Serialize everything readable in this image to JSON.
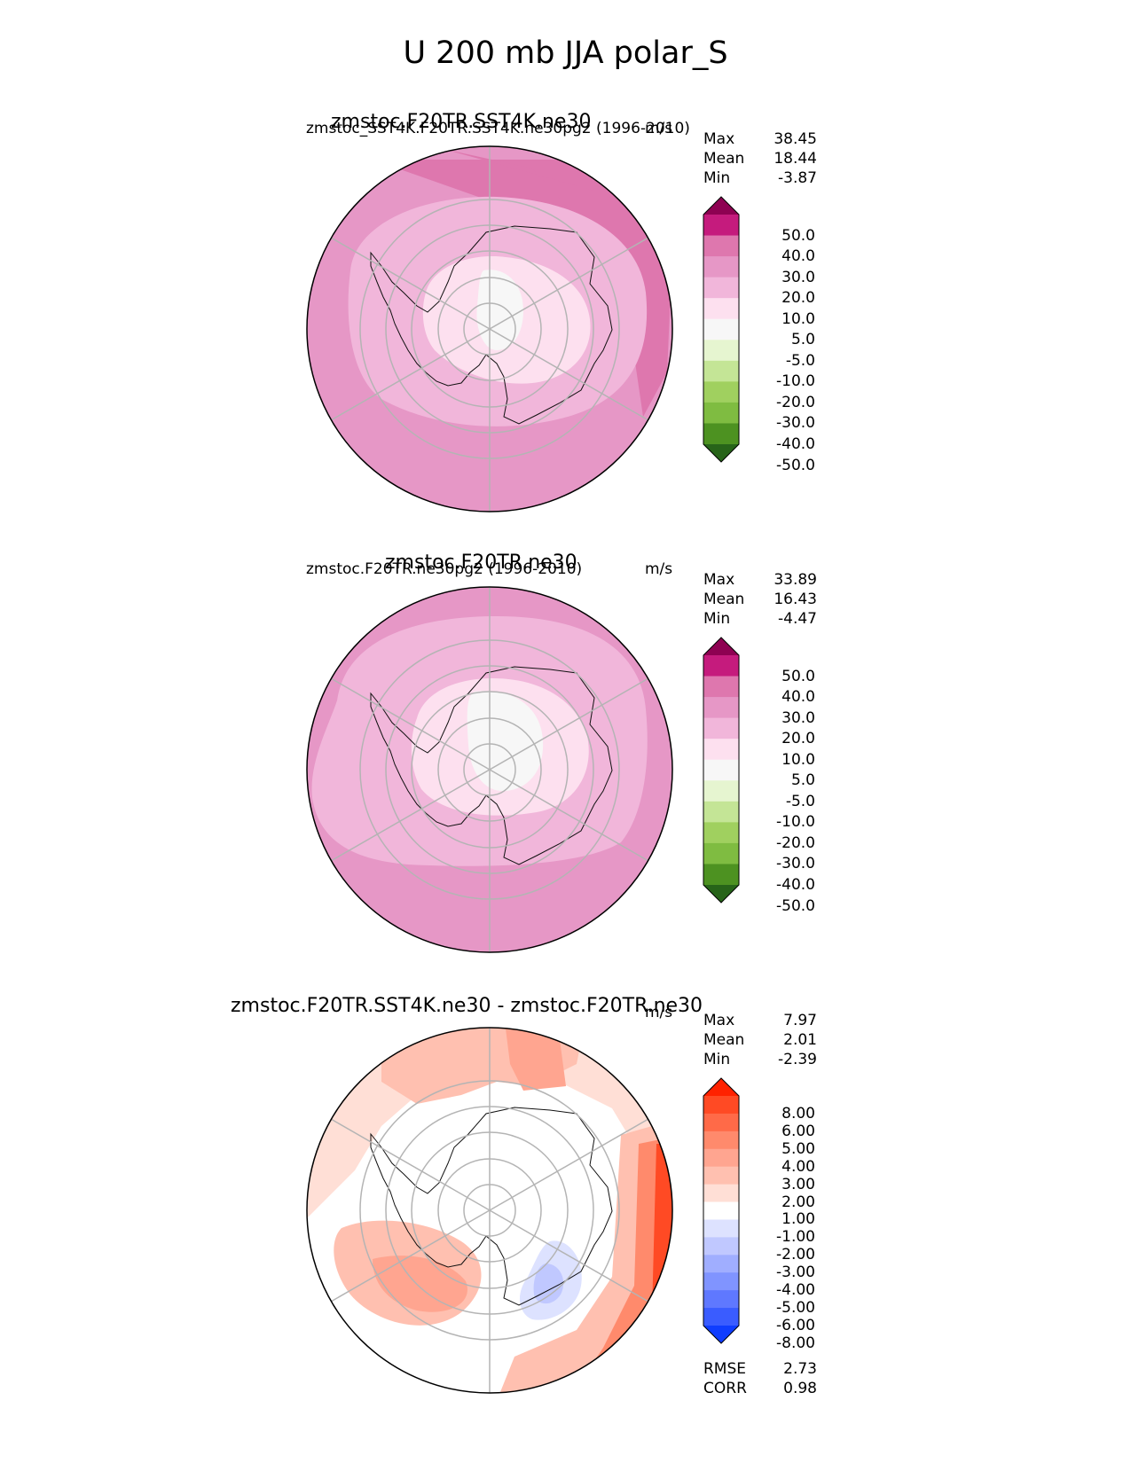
{
  "title": "U 200 mb JJA polar_S",
  "panels": [
    {
      "id": "test",
      "center_title": "zmstoc.F20TR.SST4K.ne30",
      "left_label": "zmstoc_SST4K.F20TR.SST4K.ne30pg2 (1996-2010)",
      "right_label": "m/s",
      "stats": [
        {
          "label": "Max",
          "value": "38.45"
        },
        {
          "label": "Mean",
          "value": "18.44"
        },
        {
          "label": "Min",
          "value": "-3.87"
        }
      ],
      "colorbar": "field"
    },
    {
      "id": "reference",
      "center_title": "zmstoc.F20TR.ne30",
      "left_label": "zmstoc.F20TR.ne30pg2 (1996-2010)",
      "right_label": "m/s",
      "stats": [
        {
          "label": "Max",
          "value": "33.89"
        },
        {
          "label": "Mean",
          "value": "16.43"
        },
        {
          "label": "Min",
          "value": "-4.47"
        }
      ],
      "colorbar": "field"
    },
    {
      "id": "difference",
      "center_title": "zmstoc.F20TR.SST4K.ne30 - zmstoc.F20TR.ne30",
      "left_label": "",
      "right_label": "m/s",
      "stats": [
        {
          "label": "Max",
          "value": "7.97"
        },
        {
          "label": "Mean",
          "value": "2.01"
        },
        {
          "label": "Min",
          "value": "-2.39"
        }
      ],
      "colorbar": "diff",
      "metrics": [
        {
          "label": "RMSE",
          "value": "2.73"
        },
        {
          "label": "CORR",
          "value": "0.98"
        }
      ]
    }
  ],
  "chart_data": {
    "type": "heatmap",
    "projection": "south-polar-stereographic",
    "variable": "U",
    "level_mb": 200,
    "season": "JJA",
    "units": "m/s",
    "field_levels": [
      "50.0",
      "40.0",
      "30.0",
      "20.0",
      "10.0",
      "5.0",
      "-5.0",
      "-10.0",
      "-20.0",
      "-30.0",
      "-40.0",
      "-50.0"
    ],
    "field_colors": [
      "#8e0152",
      "#c51b7d",
      "#de77ae",
      "#e697c6",
      "#f1b6da",
      "#fde0ef",
      "#f7f7f7",
      "#e6f5d0",
      "#c4e596",
      "#a0d05f",
      "#7fbc41",
      "#4d9221",
      "#276419"
    ],
    "diff_levels": [
      "8.00",
      "6.00",
      "5.00",
      "4.00",
      "3.00",
      "2.00",
      "1.00",
      "-1.00",
      "-2.00",
      "-3.00",
      "-4.00",
      "-5.00",
      "-6.00",
      "-8.00"
    ],
    "diff_colors": [
      "#ff2200",
      "#ff4a24",
      "#ff6a48",
      "#ff8a6c",
      "#ffa590",
      "#ffc0b0",
      "#ffdfd6",
      "#ffffff",
      "#dde2ff",
      "#c0c8ff",
      "#a0aeff",
      "#8094ff",
      "#5f78ff",
      "#3a5cff",
      "#0f3dff"
    ]
  }
}
